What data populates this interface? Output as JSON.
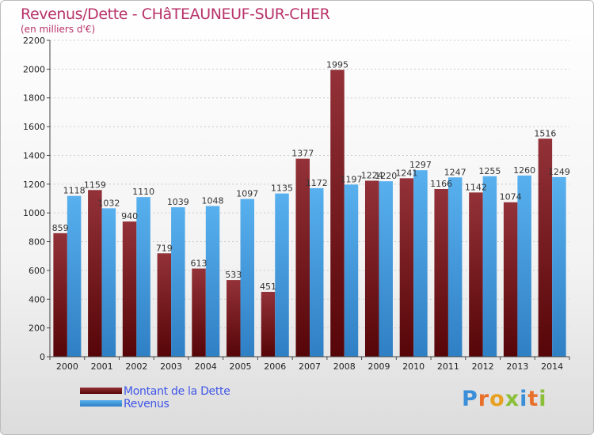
{
  "header": {
    "title": "Revenus/Dette - CHâTEAUNEUF-SUR-CHER",
    "subtitle": "(en milliers d'€)"
  },
  "legend": {
    "dette_label": "Montant de la Dette",
    "revenus_label": "Revenus"
  },
  "logo": {
    "text": "Proxiti",
    "letters": [
      {
        "ch": "P",
        "color": "#3b8fd8"
      },
      {
        "ch": "r",
        "color": "#e8702a"
      },
      {
        "ch": "o",
        "color": "#e8a020"
      },
      {
        "ch": "x",
        "color": "#8bbf3a"
      },
      {
        "ch": "i",
        "color": "#3b8fd8"
      },
      {
        "ch": "t",
        "color": "#e8702a"
      },
      {
        "ch": "i",
        "color": "#8bbf3a"
      }
    ]
  },
  "colors": {
    "dette": "#8b2a2e",
    "dette_dark": "#5c0a0d",
    "revenus": "#4ea8e8",
    "revenus_dark": "#2a7cc0",
    "axis": "#444444",
    "grid": "#cccccc"
  },
  "chart_data": {
    "type": "bar",
    "title": "Revenus/Dette - CHâTEAUNEUF-SUR-CHER",
    "ylabel": "(en milliers d'€)",
    "xlabel": "",
    "categories": [
      "2000",
      "2001",
      "2002",
      "2003",
      "2004",
      "2005",
      "2006",
      "2007",
      "2008",
      "2009",
      "2010",
      "2011",
      "2012",
      "2013",
      "2014"
    ],
    "series": [
      {
        "name": "Montant de la Dette",
        "values": [
          859,
          1159,
          940,
          719,
          613,
          533,
          451,
          1377,
          1995,
          1224,
          1241,
          1166,
          1142,
          1074,
          1516
        ]
      },
      {
        "name": "Revenus",
        "values": [
          1118,
          1032,
          1110,
          1039,
          1048,
          1097,
          1135,
          1172,
          1197,
          1220,
          1297,
          1247,
          1255,
          1260,
          1249
        ]
      }
    ],
    "ylim": [
      0,
      2200
    ],
    "yticks": [
      0,
      200,
      400,
      600,
      800,
      1000,
      1200,
      1400,
      1600,
      1800,
      2000,
      2200
    ],
    "grid": true,
    "legend_position": "bottom-left"
  }
}
